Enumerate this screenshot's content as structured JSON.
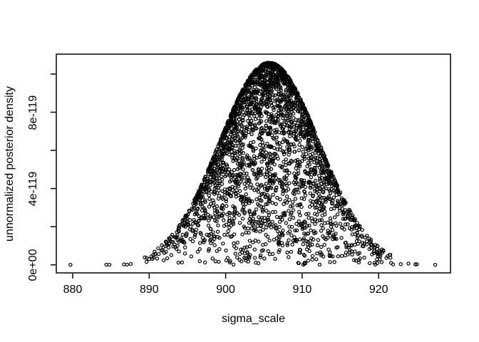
{
  "figure": {
    "background_color": "#ffffff",
    "foreground_color": "#000000"
  },
  "chart_data": {
    "type": "scatter",
    "title": "",
    "xlabel": "sigma_scale",
    "ylabel": "unnormalized posterior density",
    "marker": "open-circle",
    "grid": false,
    "legend": null,
    "x_ticks": [
      880,
      890,
      900,
      910,
      920
    ],
    "x_tick_labels": [
      "880",
      "890",
      "900",
      "910",
      "920"
    ],
    "y_tick_values": [
      0,
      2e-119,
      4e-119,
      6e-119,
      8e-119,
      1e-118
    ],
    "y_tick_labels": [
      "0e+00",
      "4e-119",
      "8e-119"
    ],
    "y_tick_label_values": [
      0,
      4e-119,
      8e-119
    ],
    "xlim": [
      877.5,
      929.5
    ],
    "ylim": [
      0,
      1.115e-118
    ],
    "x_data_range": [
      879.7,
      927.4
    ],
    "peak_point": {
      "x": 905.7,
      "y": 1.06e-118
    },
    "points_model": {
      "n": 2800,
      "center": 905.7,
      "x_sd": 6.0,
      "x_truncate": 16.5,
      "envelope_sd": 6.5,
      "peak_y": 1.06e-118,
      "seed": 20240905
    },
    "outlier_x": [
      879.7,
      884.4,
      884.8,
      886.7,
      887.1,
      887.6,
      921.9,
      922.9,
      923.9,
      924.8,
      925.0,
      927.4
    ]
  }
}
